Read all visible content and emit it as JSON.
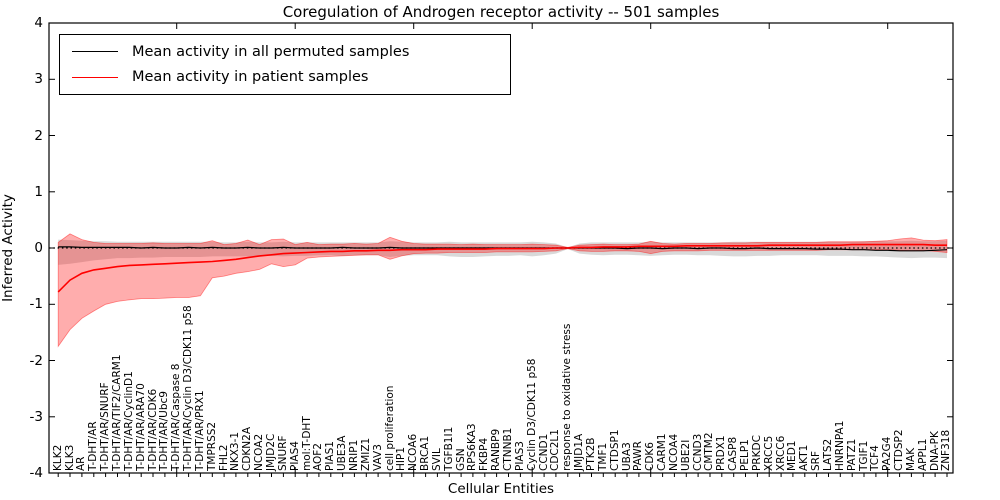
{
  "chart_data": {
    "type": "line",
    "title": "Coregulation of Androgen receptor activity -- 501 samples",
    "xlabel": "Cellular Entities",
    "ylabel": "Inferred Activity",
    "ylim": [
      -4,
      4
    ],
    "yticks": [
      4,
      3,
      2,
      1,
      0,
      -1,
      -2,
      -3,
      -4
    ],
    "grid": false,
    "legend_position": "upper left",
    "legend": [
      {
        "label": "Mean activity in all permuted samples",
        "color": "#000000"
      },
      {
        "label": "Mean activity in patient samples",
        "color": "#ff0000"
      }
    ],
    "zero_line": {
      "value": 0,
      "style": "dotted",
      "color": "#000000"
    },
    "band_colors": {
      "permuted": "rgba(0,0,0,0.15)",
      "patient": "rgba(255,0,0,0.32)"
    },
    "categories": [
      "KLK2",
      "KLK3",
      "AR",
      "T-DHT/AR",
      "T-DHT/AR/SNURF",
      "T-DHT/AR/TIF2/CARM1",
      "T-DHT/AR/CyclinD1",
      "T-DHT/AR/ARA70",
      "T-DHT/AR/CDK6",
      "T-DHT/AR/Ubc9",
      "T-DHT/AR/Caspase 8",
      "T-DHT/AR/Cyclin D3/CDK11 p58",
      "T-DHT/AR/PRX1",
      "TMPRSS2",
      "FHL2",
      "NKX3-1",
      "CDKN2A",
      "NCOA2",
      "JMJD2C",
      "SNURF",
      "PIAS4",
      "mol:T-DHT",
      "AOF2",
      "PIAS1",
      "UBE3A",
      "NRIP1",
      "ZMIZ1",
      "VAV3",
      "cell proliferation",
      "HIP1",
      "NCOA6",
      "BRCA1",
      "SVIL",
      "TGFB1I1",
      "GSN",
      "RPS6KA3",
      "FKBP4",
      "RANBP9",
      "CTNNB1",
      "PIAS3",
      "Cyclin D3/CDK11 p58",
      "CCND1",
      "CDC2L1",
      "response to oxidative stress",
      "JMJD1A",
      "PTK2B",
      "TMF1",
      "CTDSP1",
      "UBA3",
      "PAWR",
      "CDK6",
      "CARM1",
      "NCOA4",
      "UBE2I",
      "CCND3",
      "CMTM2",
      "PRDX1",
      "CASP8",
      "PELP1",
      "PRKDC",
      "XRCC5",
      "XRCC6",
      "MED1",
      "AKT1",
      "SRF",
      "LATS2",
      "HNRNPA1",
      "PATZ1",
      "TGIF1",
      "TCF4",
      "PA2G4",
      "CTDSP2",
      "MAK",
      "APPL1",
      "DNA-PK",
      "ZNF318"
    ],
    "series": [
      {
        "name": "Mean activity in all permuted samples",
        "color": "#000000",
        "values": [
          0.02,
          0.02,
          0.01,
          0.01,
          0.01,
          0.01,
          0.01,
          0.0,
          0.01,
          0.0,
          0.0,
          0.01,
          0.0,
          0.01,
          0.0,
          0.0,
          0.01,
          0.0,
          0.0,
          0.01,
          0.0,
          0.0,
          0.0,
          0.0,
          0.01,
          0.0,
          0.0,
          0.0,
          0.01,
          0.0,
          0.0,
          0.0,
          0.0,
          0.0,
          0.0,
          0.0,
          0.0,
          0.0,
          0.0,
          0.0,
          0.0,
          0.0,
          0.0,
          0.0,
          0.0,
          0.0,
          0.0,
          0.0,
          -0.01,
          0.0,
          0.0,
          -0.01,
          0.0,
          0.0,
          -0.01,
          0.0,
          0.0,
          -0.01,
          -0.01,
          0.0,
          -0.01,
          -0.01,
          -0.01,
          -0.01,
          -0.02,
          -0.02,
          -0.02,
          -0.03,
          -0.03,
          -0.04,
          -0.04,
          -0.05,
          -0.05,
          -0.05,
          -0.04,
          -0.03
        ],
        "band_upper": [
          0.15,
          0.14,
          0.13,
          0.12,
          0.12,
          0.11,
          0.11,
          0.11,
          0.11,
          0.11,
          0.11,
          0.11,
          0.11,
          0.11,
          0.1,
          0.1,
          0.11,
          0.1,
          0.1,
          0.11,
          0.1,
          0.1,
          0.1,
          0.1,
          0.1,
          0.1,
          0.1,
          0.1,
          0.12,
          0.11,
          0.1,
          0.1,
          0.1,
          0.11,
          0.1,
          0.1,
          0.1,
          0.1,
          0.1,
          0.1,
          0.11,
          0.1,
          0.08,
          0.01,
          0.08,
          0.1,
          0.1,
          0.1,
          0.1,
          0.1,
          0.11,
          0.1,
          0.1,
          0.1,
          0.1,
          0.1,
          0.1,
          0.11,
          0.11,
          0.11,
          0.11,
          0.11,
          0.11,
          0.11,
          0.11,
          0.11,
          0.11,
          0.11,
          0.12,
          0.12,
          0.12,
          0.12,
          0.13,
          0.12,
          0.12,
          0.13
        ],
        "band_lower": [
          -0.3,
          -0.28,
          -0.25,
          -0.22,
          -0.2,
          -0.18,
          -0.18,
          -0.17,
          -0.17,
          -0.16,
          -0.16,
          -0.16,
          -0.16,
          -0.15,
          -0.15,
          -0.15,
          -0.15,
          -0.14,
          -0.14,
          -0.15,
          -0.14,
          -0.14,
          -0.13,
          -0.13,
          -0.14,
          -0.13,
          -0.13,
          -0.13,
          -0.16,
          -0.14,
          -0.13,
          -0.13,
          -0.13,
          -0.15,
          -0.16,
          -0.16,
          -0.15,
          -0.14,
          -0.14,
          -0.13,
          -0.15,
          -0.13,
          -0.1,
          -0.02,
          -0.1,
          -0.12,
          -0.13,
          -0.12,
          -0.12,
          -0.13,
          -0.14,
          -0.13,
          -0.12,
          -0.12,
          -0.13,
          -0.13,
          -0.14,
          -0.15,
          -0.15,
          -0.14,
          -0.14,
          -0.13,
          -0.13,
          -0.13,
          -0.13,
          -0.14,
          -0.14,
          -0.14,
          -0.15,
          -0.15,
          -0.16,
          -0.17,
          -0.18,
          -0.17,
          -0.17,
          -0.18
        ]
      },
      {
        "name": "Mean activity in patient samples",
        "color": "#ff0000",
        "values": [
          -0.78,
          -0.57,
          -0.45,
          -0.39,
          -0.36,
          -0.33,
          -0.31,
          -0.3,
          -0.29,
          -0.28,
          -0.27,
          -0.26,
          -0.25,
          -0.24,
          -0.22,
          -0.2,
          -0.17,
          -0.14,
          -0.12,
          -0.1,
          -0.09,
          -0.08,
          -0.07,
          -0.06,
          -0.06,
          -0.05,
          -0.05,
          -0.04,
          -0.04,
          -0.03,
          -0.03,
          -0.03,
          -0.02,
          -0.02,
          -0.02,
          -0.02,
          -0.02,
          -0.01,
          -0.01,
          -0.01,
          -0.01,
          -0.01,
          0.0,
          0.0,
          0.01,
          0.01,
          0.02,
          0.02,
          0.02,
          0.03,
          0.03,
          0.03,
          0.03,
          0.04,
          0.04,
          0.04,
          0.04,
          0.04,
          0.04,
          0.04,
          0.05,
          0.05,
          0.05,
          0.05,
          0.05,
          0.05,
          0.05,
          0.06,
          0.06,
          0.06,
          0.06,
          0.06,
          0.06,
          0.06,
          0.05,
          0.05
        ],
        "band_upper": [
          0.1,
          0.25,
          0.15,
          0.1,
          0.08,
          0.08,
          0.08,
          0.08,
          0.09,
          0.08,
          0.08,
          0.08,
          0.08,
          0.13,
          0.06,
          0.08,
          0.14,
          0.06,
          0.15,
          0.16,
          0.06,
          0.1,
          0.06,
          0.07,
          0.07,
          0.08,
          0.07,
          0.08,
          0.19,
          0.12,
          0.08,
          0.07,
          0.07,
          0.07,
          0.06,
          0.07,
          0.06,
          0.06,
          0.06,
          0.06,
          0.07,
          0.06,
          0.05,
          0.01,
          0.05,
          0.06,
          0.07,
          0.06,
          0.06,
          0.07,
          0.12,
          0.08,
          0.07,
          0.08,
          0.08,
          0.08,
          0.09,
          0.09,
          0.09,
          0.1,
          0.1,
          0.1,
          0.1,
          0.1,
          0.1,
          0.11,
          0.11,
          0.11,
          0.11,
          0.12,
          0.13,
          0.16,
          0.18,
          0.14,
          0.13,
          0.15
        ],
        "band_lower": [
          -1.75,
          -1.45,
          -1.25,
          -1.12,
          -1.0,
          -0.95,
          -0.92,
          -0.9,
          -0.9,
          -0.89,
          -0.88,
          -0.88,
          -0.85,
          -0.53,
          -0.5,
          -0.45,
          -0.42,
          -0.38,
          -0.28,
          -0.33,
          -0.3,
          -0.18,
          -0.16,
          -0.15,
          -0.14,
          -0.13,
          -0.12,
          -0.12,
          -0.2,
          -0.14,
          -0.1,
          -0.09,
          -0.09,
          -0.08,
          -0.08,
          -0.08,
          -0.08,
          -0.07,
          -0.07,
          -0.07,
          -0.07,
          -0.06,
          -0.05,
          -0.01,
          -0.05,
          -0.06,
          -0.06,
          -0.05,
          -0.05,
          -0.06,
          -0.1,
          -0.06,
          -0.05,
          -0.05,
          -0.05,
          -0.04,
          -0.04,
          -0.04,
          -0.04,
          -0.04,
          -0.04,
          -0.04,
          -0.04,
          -0.04,
          -0.04,
          -0.03,
          -0.03,
          -0.03,
          -0.03,
          -0.03,
          -0.03,
          -0.04,
          -0.05,
          -0.04,
          -0.06,
          -0.08
        ]
      }
    ]
  }
}
